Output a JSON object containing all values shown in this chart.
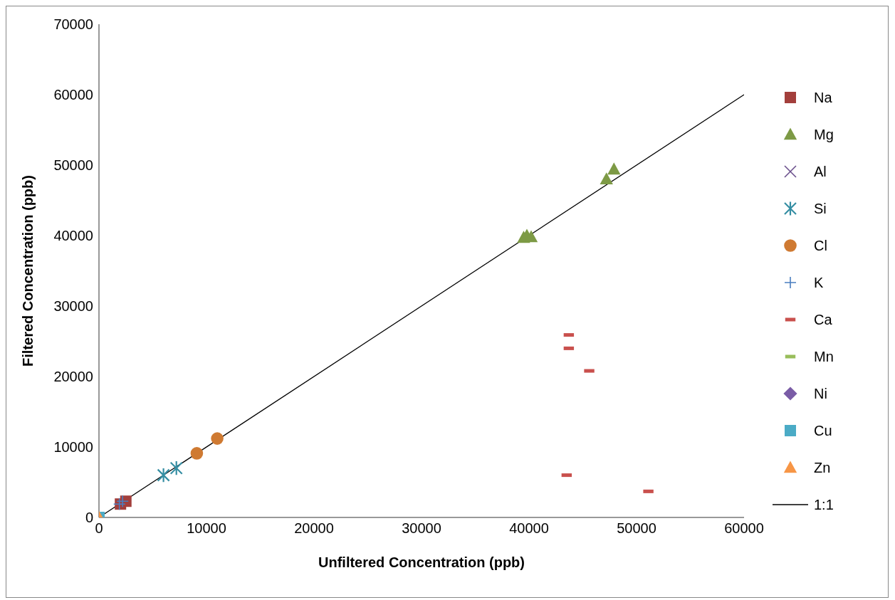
{
  "chart_data": {
    "type": "scatter",
    "xlabel": "Unfiltered Concentration (ppb)",
    "ylabel": "Filtered Concentration (ppb)",
    "xlim": [
      0,
      60000
    ],
    "ylim": [
      0,
      70000
    ],
    "xticks": [
      0,
      10000,
      20000,
      30000,
      40000,
      50000,
      60000
    ],
    "yticks": [
      0,
      10000,
      20000,
      30000,
      40000,
      50000,
      60000,
      70000
    ],
    "grid": false,
    "legend": "right",
    "series": [
      {
        "name": "Na",
        "color": "#a33f3c",
        "marker": "square",
        "x": [
          2000,
          2500
        ],
        "values": [
          1900,
          2300
        ]
      },
      {
        "name": "Mg",
        "color": "#7d9a45",
        "marker": "triangle",
        "x": [
          39500,
          39800,
          40200,
          47200,
          47900
        ],
        "values": [
          39700,
          40000,
          39800,
          48000,
          49400
        ]
      },
      {
        "name": "Al",
        "color": "#6a4f8c"
      },
      {
        "name": "Si",
        "color": "#358ea3",
        "x": [
          6000,
          7200
        ],
        "values": [
          6000,
          7000
        ]
      },
      {
        "name": "Cl",
        "color": "#cf7a32",
        "marker": "circle",
        "x": [
          9100,
          11000
        ],
        "values": [
          9100,
          11200
        ]
      },
      {
        "name": "K",
        "color": "#4a7ec0",
        "x": [
          1900,
          2200
        ],
        "values": [
          1900,
          2300
        ]
      },
      {
        "name": "Ca",
        "color": "#c9504d",
        "x": [
          43700,
          43700,
          45600,
          43500,
          51100
        ],
        "values": [
          25900,
          24000,
          20800,
          6000,
          3700
        ]
      },
      {
        "name": "Mn",
        "color": "#98bd5a"
      },
      {
        "name": "Ni",
        "color": "#7a5ca6",
        "marker": "diamond"
      },
      {
        "name": "Cu",
        "color": "#4babc6",
        "marker": "square",
        "x": [
          0
        ],
        "values": [
          0
        ]
      },
      {
        "name": "Zn",
        "color": "#f79646",
        "marker": "triangle",
        "x": [
          0
        ],
        "values": [
          0
        ]
      },
      {
        "name": "1:1",
        "type": "line",
        "color": "#000000",
        "x": [
          0,
          60000
        ],
        "values": [
          0,
          60000
        ]
      }
    ]
  }
}
